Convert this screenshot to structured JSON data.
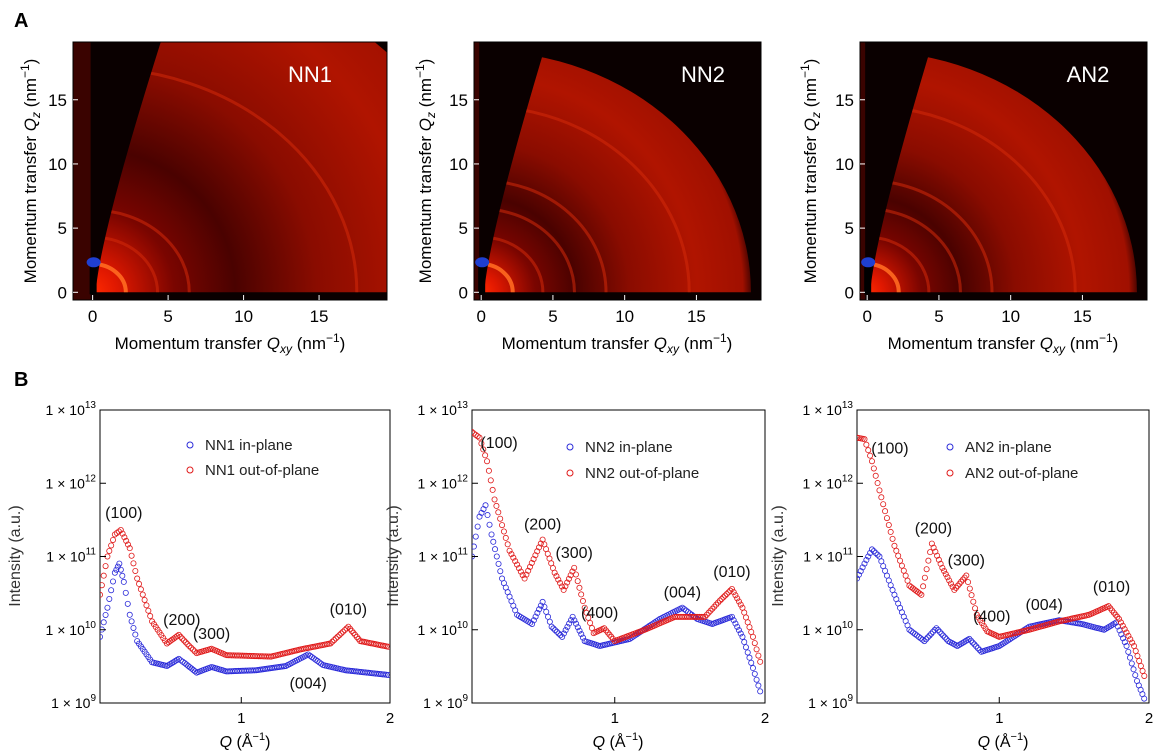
{
  "panel_labels": {
    "a": "A",
    "b": "B"
  },
  "colors": {
    "in_plane": "#2b2bd9",
    "out_of_plane": "#e01b1b",
    "map_dark": "#0a0000",
    "map_bright": "#ff3a10",
    "beam": "#1f3fd0"
  },
  "chart_data": [
    {
      "type": "heatmap",
      "panel": "A",
      "title": "NN1",
      "xlabel_main": "Momentum transfer ",
      "xlabel_sym": "Q",
      "xlabel_sub": "xy",
      "xlabel_unit": " (nm",
      "xlabel_exp": "−1",
      "xlabel_close": ")",
      "ylabel_main": "Momentum transfer ",
      "ylabel_sym": "Q",
      "ylabel_sub": "z",
      "ylabel_unit": " (nm",
      "ylabel_exp": "−1",
      "ylabel_close": ")",
      "xlim": [
        -1.3,
        19.5
      ],
      "ylim": [
        -0.6,
        19.5
      ],
      "xticks": [
        0,
        5,
        10,
        15
      ],
      "yticks": [
        0,
        5,
        10,
        15
      ],
      "qmax": 27,
      "rings": [
        2.2,
        4.3,
        6.4,
        17.5
      ]
    },
    {
      "type": "heatmap",
      "panel": "A",
      "title": "NN2",
      "xlabel_main": "Momentum transfer ",
      "xlabel_sym": "Q",
      "xlabel_sub": "xy",
      "xlabel_unit": " (nm",
      "xlabel_exp": "−1",
      "xlabel_close": ")",
      "ylabel_main": "Momentum transfer ",
      "ylabel_sym": "Q",
      "ylabel_sub": "z",
      "ylabel_unit": " (nm",
      "ylabel_exp": "−1",
      "ylabel_close": ")",
      "xlim": [
        -0.5,
        19.5
      ],
      "ylim": [
        -0.6,
        19.5
      ],
      "xticks": [
        0,
        5,
        10,
        15
      ],
      "yticks": [
        0,
        5,
        10,
        15
      ],
      "qmax": 18.8,
      "rings": [
        2.2,
        4.3,
        6.5,
        8.7,
        14.5
      ]
    },
    {
      "type": "heatmap",
      "panel": "A",
      "title": "AN2",
      "xlabel_main": "Momentum transfer ",
      "xlabel_sym": "Q",
      "xlabel_sub": "xy",
      "xlabel_unit": " (nm",
      "xlabel_exp": "−1",
      "xlabel_close": ")",
      "ylabel_main": "Momentum transfer ",
      "ylabel_sym": "Q",
      "ylabel_sub": "z",
      "ylabel_unit": " (nm",
      "ylabel_exp": "−1",
      "ylabel_close": ")",
      "xlim": [
        -0.5,
        19.5
      ],
      "ylim": [
        -0.6,
        19.5
      ],
      "xticks": [
        0,
        5,
        10,
        15
      ],
      "yticks": [
        0,
        5,
        10,
        15
      ],
      "qmax": 18.8,
      "rings": [
        2.2,
        4.3,
        6.5,
        8.7,
        14.5
      ]
    },
    {
      "type": "scatter",
      "panel": "B",
      "yscale": "log",
      "xlabel_sym": "Q",
      "xlabel_unit": " (Å",
      "xlabel_exp": "−1",
      "xlabel_close": ")",
      "ylabel": "Intensity (a.u.)",
      "xlim": [
        0.05,
        2.0
      ],
      "ylim": [
        1000000000.0,
        10000000000000.0
      ],
      "xticks": [
        1,
        2
      ],
      "yticks": [
        {
          "base": "1 × 10",
          "exp": "9",
          "v": 1000000000.0
        },
        {
          "base": "1 × 10",
          "exp": "10",
          "v": 10000000000.0
        },
        {
          "base": "1 × 10",
          "exp": "11",
          "v": 100000000000.0
        },
        {
          "base": "1 × 10",
          "exp": "12",
          "v": 1000000000000.0
        },
        {
          "base": "1 × 10",
          "exp": "13",
          "v": 10000000000000.0
        }
      ],
      "series": [
        {
          "name": "NN1 in-plane",
          "color": "in_plane",
          "points": [
            [
              0.05,
              8000000000.0
            ],
            [
              0.1,
              20000000000.0
            ],
            [
              0.15,
              60000000000.0
            ],
            [
              0.18,
              80000000000.0
            ],
            [
              0.21,
              45000000000.0
            ],
            [
              0.25,
              16000000000.0
            ],
            [
              0.3,
              7000000000.0
            ],
            [
              0.4,
              3600000000.0
            ],
            [
              0.5,
              3200000000.0
            ],
            [
              0.58,
              4000000000.0
            ],
            [
              0.62,
              3500000000.0
            ],
            [
              0.7,
              2600000000.0
            ],
            [
              0.8,
              3100000000.0
            ],
            [
              0.9,
              2700000000.0
            ],
            [
              1.1,
              2800000000.0
            ],
            [
              1.3,
              3200000000.0
            ],
            [
              1.45,
              4600000000.0
            ],
            [
              1.55,
              3300000000.0
            ],
            [
              1.7,
              2800000000.0
            ],
            [
              2.0,
              2400000000.0
            ]
          ]
        },
        {
          "name": "NN1 out-of-plane",
          "color": "out_of_plane",
          "points": [
            [
              0.05,
              30000000000.0
            ],
            [
              0.1,
              100000000000.0
            ],
            [
              0.15,
              200000000000.0
            ],
            [
              0.19,
              230000000000.0
            ],
            [
              0.25,
              130000000000.0
            ],
            [
              0.3,
              50000000000.0
            ],
            [
              0.4,
              13000000000.0
            ],
            [
              0.5,
              6500000000.0
            ],
            [
              0.58,
              8500000000.0
            ],
            [
              0.65,
              6000000000.0
            ],
            [
              0.7,
              4800000000.0
            ],
            [
              0.8,
              5500000000.0
            ],
            [
              0.9,
              4500000000.0
            ],
            [
              1.2,
              4300000000.0
            ],
            [
              1.4,
              5400000000.0
            ],
            [
              1.6,
              6500000000.0
            ],
            [
              1.72,
              11000000000.0
            ],
            [
              1.8,
              7000000000.0
            ],
            [
              2.0,
              5800000000.0
            ]
          ]
        },
        {
          "name": "NN2 in-plane",
          "color": "in_plane",
          "points": [
            [
              0.05,
              100000000000.0
            ],
            [
              0.1,
              350000000000.0
            ],
            [
              0.14,
              500000000000.0
            ],
            [
              0.18,
              200000000000.0
            ],
            [
              0.25,
              50000000000.0
            ],
            [
              0.35,
              16000000000.0
            ],
            [
              0.45,
              12000000000.0
            ],
            [
              0.52,
              24000000000.0
            ],
            [
              0.58,
              11000000000.0
            ],
            [
              0.65,
              8000000000.0
            ],
            [
              0.72,
              15000000000.0
            ],
            [
              0.8,
              7000000000.0
            ],
            [
              0.9,
              6000000000.0
            ],
            [
              1.1,
              7500000000.0
            ],
            [
              1.3,
              14000000000.0
            ],
            [
              1.45,
              20000000000.0
            ],
            [
              1.55,
              14000000000.0
            ],
            [
              1.65,
              12000000000.0
            ],
            [
              1.78,
              15000000000.0
            ],
            [
              1.85,
              8000000000.0
            ],
            [
              1.92,
              3000000000.0
            ],
            [
              1.98,
              1200000000.0
            ]
          ]
        },
        {
          "name": "NN2 out-of-plane",
          "color": "out_of_plane",
          "points": [
            [
              0.05,
              5000000000000.0
            ],
            [
              0.1,
              4200000000000.0
            ],
            [
              0.15,
              2000000000000.0
            ],
            [
              0.2,
              600000000000.0
            ],
            [
              0.3,
              120000000000.0
            ],
            [
              0.4,
              50000000000.0
            ],
            [
              0.52,
              170000000000.0
            ],
            [
              0.6,
              60000000000.0
            ],
            [
              0.66,
              35000000000.0
            ],
            [
              0.73,
              70000000000.0
            ],
            [
              0.8,
              20000000000.0
            ],
            [
              0.86,
              9000000000.0
            ],
            [
              0.93,
              10500000000.0
            ],
            [
              1.0,
              7000000000.0
            ],
            [
              1.2,
              10000000000.0
            ],
            [
              1.4,
              15000000000.0
            ],
            [
              1.6,
              15000000000.0
            ],
            [
              1.7,
              25000000000.0
            ],
            [
              1.78,
              36000000000.0
            ],
            [
              1.85,
              20000000000.0
            ],
            [
              1.92,
              8000000000.0
            ],
            [
              1.98,
              3000000000.0
            ]
          ]
        },
        {
          "name": "AN2 in-plane",
          "color": "in_plane",
          "points": [
            [
              0.05,
              50000000000.0
            ],
            [
              0.1,
              80000000000.0
            ],
            [
              0.15,
              125000000000.0
            ],
            [
              0.2,
              100000000000.0
            ],
            [
              0.3,
              30000000000.0
            ],
            [
              0.4,
              10000000000.0
            ],
            [
              0.5,
              7000000000.0
            ],
            [
              0.58,
              10500000000.0
            ],
            [
              0.66,
              7000000000.0
            ],
            [
              0.72,
              6000000000.0
            ],
            [
              0.8,
              7500000000.0
            ],
            [
              0.88,
              5000000000.0
            ],
            [
              1.0,
              6000000000.0
            ],
            [
              1.2,
              11000000000.0
            ],
            [
              1.4,
              13500000000.0
            ],
            [
              1.55,
              12000000000.0
            ],
            [
              1.7,
              10000000000.0
            ],
            [
              1.78,
              12500000000.0
            ],
            [
              1.85,
              6000000000.0
            ],
            [
              1.92,
              2000000000.0
            ],
            [
              1.98,
              1000000000.0
            ]
          ]
        },
        {
          "name": "AN2 out-of-plane",
          "color": "out_of_plane",
          "points": [
            [
              0.05,
              4200000000000.0
            ],
            [
              0.1,
              4000000000000.0
            ],
            [
              0.15,
              2000000000000.0
            ],
            [
              0.2,
              800000000000.0
            ],
            [
              0.3,
              140000000000.0
            ],
            [
              0.4,
              40000000000.0
            ],
            [
              0.48,
              30000000000.0
            ],
            [
              0.55,
              150000000000.0
            ],
            [
              0.62,
              70000000000.0
            ],
            [
              0.7,
              35000000000.0
            ],
            [
              0.78,
              55000000000.0
            ],
            [
              0.85,
              16000000000.0
            ],
            [
              0.92,
              9500000000.0
            ],
            [
              1.0,
              8000000000.0
            ],
            [
              1.2,
              10000000000.0
            ],
            [
              1.4,
              13000000000.0
            ],
            [
              1.6,
              16000000000.0
            ],
            [
              1.73,
              21000000000.0
            ],
            [
              1.8,
              14000000000.0
            ],
            [
              1.9,
              6000000000.0
            ],
            [
              1.98,
              2000000000.0
            ]
          ]
        }
      ],
      "annotations": [
        [
          "(100)",
          "(200)",
          "(300)",
          "(004)",
          "(010)"
        ],
        [
          "(100)",
          "(200)",
          "(300)",
          "(400)",
          "(004)",
          "(010)"
        ],
        [
          "(100)",
          "(200)",
          "(300)",
          "(400)",
          "(004)",
          "(010)"
        ]
      ]
    }
  ]
}
